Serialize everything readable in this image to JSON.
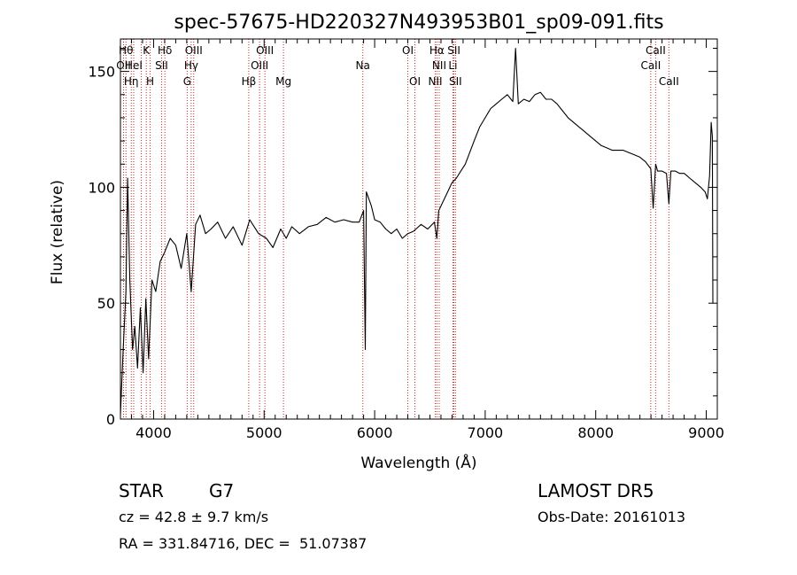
{
  "chart_data": {
    "type": "line",
    "title": "spec-57675-HD220327N493953B01_sp09-091.fits",
    "xlabel": "Wavelength (Å)",
    "ylabel": "Flux (relative)",
    "xlim": [
      3700,
      9100
    ],
    "ylim": [
      0,
      164
    ],
    "xticks": [
      4000,
      5000,
      6000,
      7000,
      8000,
      9000
    ],
    "yticks": [
      0,
      50,
      100,
      150
    ],
    "grid": false,
    "series": [
      {
        "x": [
          3700,
          3725,
          3750,
          3765,
          3785,
          3810,
          3830,
          3855,
          3880,
          3905,
          3930,
          3955,
          3985,
          4020,
          4060,
          4100,
          4150,
          4200,
          4250,
          4300,
          4340,
          4380,
          4420,
          4470,
          4520,
          4580,
          4650,
          4720,
          4800,
          4870,
          4950,
          5020,
          5080,
          5150,
          5200,
          5250,
          5320,
          5400,
          5480,
          5560,
          5640,
          5720,
          5800,
          5860,
          5900,
          5915,
          5925,
          5940,
          5970,
          6000,
          6050,
          6100,
          6150,
          6200,
          6250,
          6300,
          6350,
          6420,
          6480,
          6540,
          6563,
          6580,
          6620,
          6660,
          6700,
          6740,
          6780,
          6820,
          6860,
          6900,
          6950,
          7000,
          7050,
          7100,
          7150,
          7200,
          7250,
          7275,
          7300,
          7350,
          7400,
          7450,
          7500,
          7550,
          7600,
          7650,
          7700,
          7750,
          7800,
          7850,
          7900,
          7950,
          8000,
          8050,
          8100,
          8150,
          8200,
          8250,
          8300,
          8350,
          8400,
          8450,
          8498,
          8520,
          8542,
          8560,
          8600,
          8640,
          8662,
          8680,
          8720,
          8760,
          8800,
          8850,
          8900,
          8950,
          8990,
          9010,
          9030,
          9045,
          9055,
          9060
        ],
        "y": [
          2,
          30,
          55,
          104,
          60,
          30,
          40,
          22,
          48,
          20,
          52,
          26,
          60,
          55,
          68,
          72,
          78,
          75,
          65,
          80,
          55,
          84,
          88,
          80,
          82,
          85,
          78,
          83,
          75,
          86,
          80,
          78,
          74,
          82,
          78,
          83,
          80,
          83,
          84,
          87,
          85,
          86,
          85,
          85,
          90,
          30,
          98,
          96,
          92,
          86,
          85,
          82,
          80,
          82,
          78,
          80,
          81,
          84,
          82,
          85,
          78,
          90,
          94,
          98,
          102,
          104,
          107,
          110,
          115,
          120,
          126,
          130,
          134,
          136,
          138,
          140,
          137,
          160,
          136,
          138,
          137,
          140,
          141,
          138,
          138,
          136,
          133,
          130,
          128,
          126,
          124,
          122,
          120,
          118,
          117,
          116,
          116,
          116,
          115,
          114,
          113,
          111,
          108,
          91,
          110,
          107,
          107,
          106,
          93,
          107,
          107,
          106,
          106,
          104,
          102,
          100,
          98,
          95,
          105,
          128,
          122,
          50
        ]
      }
    ],
    "lines": [
      {
        "x": 3728,
        "labels": [
          "OII"
        ],
        "row": 1
      },
      {
        "x": 3750,
        "labels": [
          "Hθ"
        ],
        "row": 0
      },
      {
        "x": 3798,
        "labels": [
          "Hη"
        ],
        "row": 2
      },
      {
        "x": 3820,
        "labels": [
          "HeI"
        ],
        "row": 1
      },
      {
        "x": 3889,
        "labels": [],
        "row": 0
      },
      {
        "x": 3934,
        "labels": [
          "K"
        ],
        "row": 0
      },
      {
        "x": 3969,
        "labels": [
          "H"
        ],
        "row": 2
      },
      {
        "x": 4072,
        "labels": [
          "SII"
        ],
        "row": 1
      },
      {
        "x": 4102,
        "labels": [
          "Hδ"
        ],
        "row": 0
      },
      {
        "x": 4304,
        "labels": [
          "G"
        ],
        "row": 2
      },
      {
        "x": 4340,
        "labels": [
          "Hγ"
        ],
        "row": 1
      },
      {
        "x": 4363,
        "labels": [
          "OIII"
        ],
        "row": 0
      },
      {
        "x": 4861,
        "labels": [
          "Hβ"
        ],
        "row": 2
      },
      {
        "x": 4959,
        "labels": [
          "OIII"
        ],
        "row": 1
      },
      {
        "x": 5007,
        "labels": [
          "OIII"
        ],
        "row": 0
      },
      {
        "x": 5175,
        "labels": [
          "Mg"
        ],
        "row": 2
      },
      {
        "x": 5893,
        "labels": [
          "Na"
        ],
        "row": 1
      },
      {
        "x": 6300,
        "labels": [
          "OI"
        ],
        "row": 0
      },
      {
        "x": 6364,
        "labels": [
          "OI"
        ],
        "row": 2
      },
      {
        "x": 6548,
        "labels": [
          "NII"
        ],
        "row": 2
      },
      {
        "x": 6563,
        "labels": [
          "Hα"
        ],
        "row": 0
      },
      {
        "x": 6584,
        "labels": [
          "NII"
        ],
        "row": 1
      },
      {
        "x": 6708,
        "labels": [
          "Li"
        ],
        "row": 1
      },
      {
        "x": 6717,
        "labels": [
          "SII"
        ],
        "row": 0
      },
      {
        "x": 6731,
        "labels": [
          "SII"
        ],
        "row": 2
      },
      {
        "x": 8498,
        "labels": [
          "CaII"
        ],
        "row": 1
      },
      {
        "x": 8542,
        "labels": [
          "CaII"
        ],
        "row": 0
      },
      {
        "x": 8662,
        "labels": [
          "CaII"
        ],
        "row": 2
      }
    ]
  },
  "footer": {
    "class": "STAR",
    "subclass": "G7",
    "survey": "LAMOST DR5",
    "velocity": "cz = 42.8 ± 9.7 km/s",
    "obs_date": "Obs-Date: 20161013",
    "coords": "RA = 331.84716, DEC =  51.07387"
  }
}
